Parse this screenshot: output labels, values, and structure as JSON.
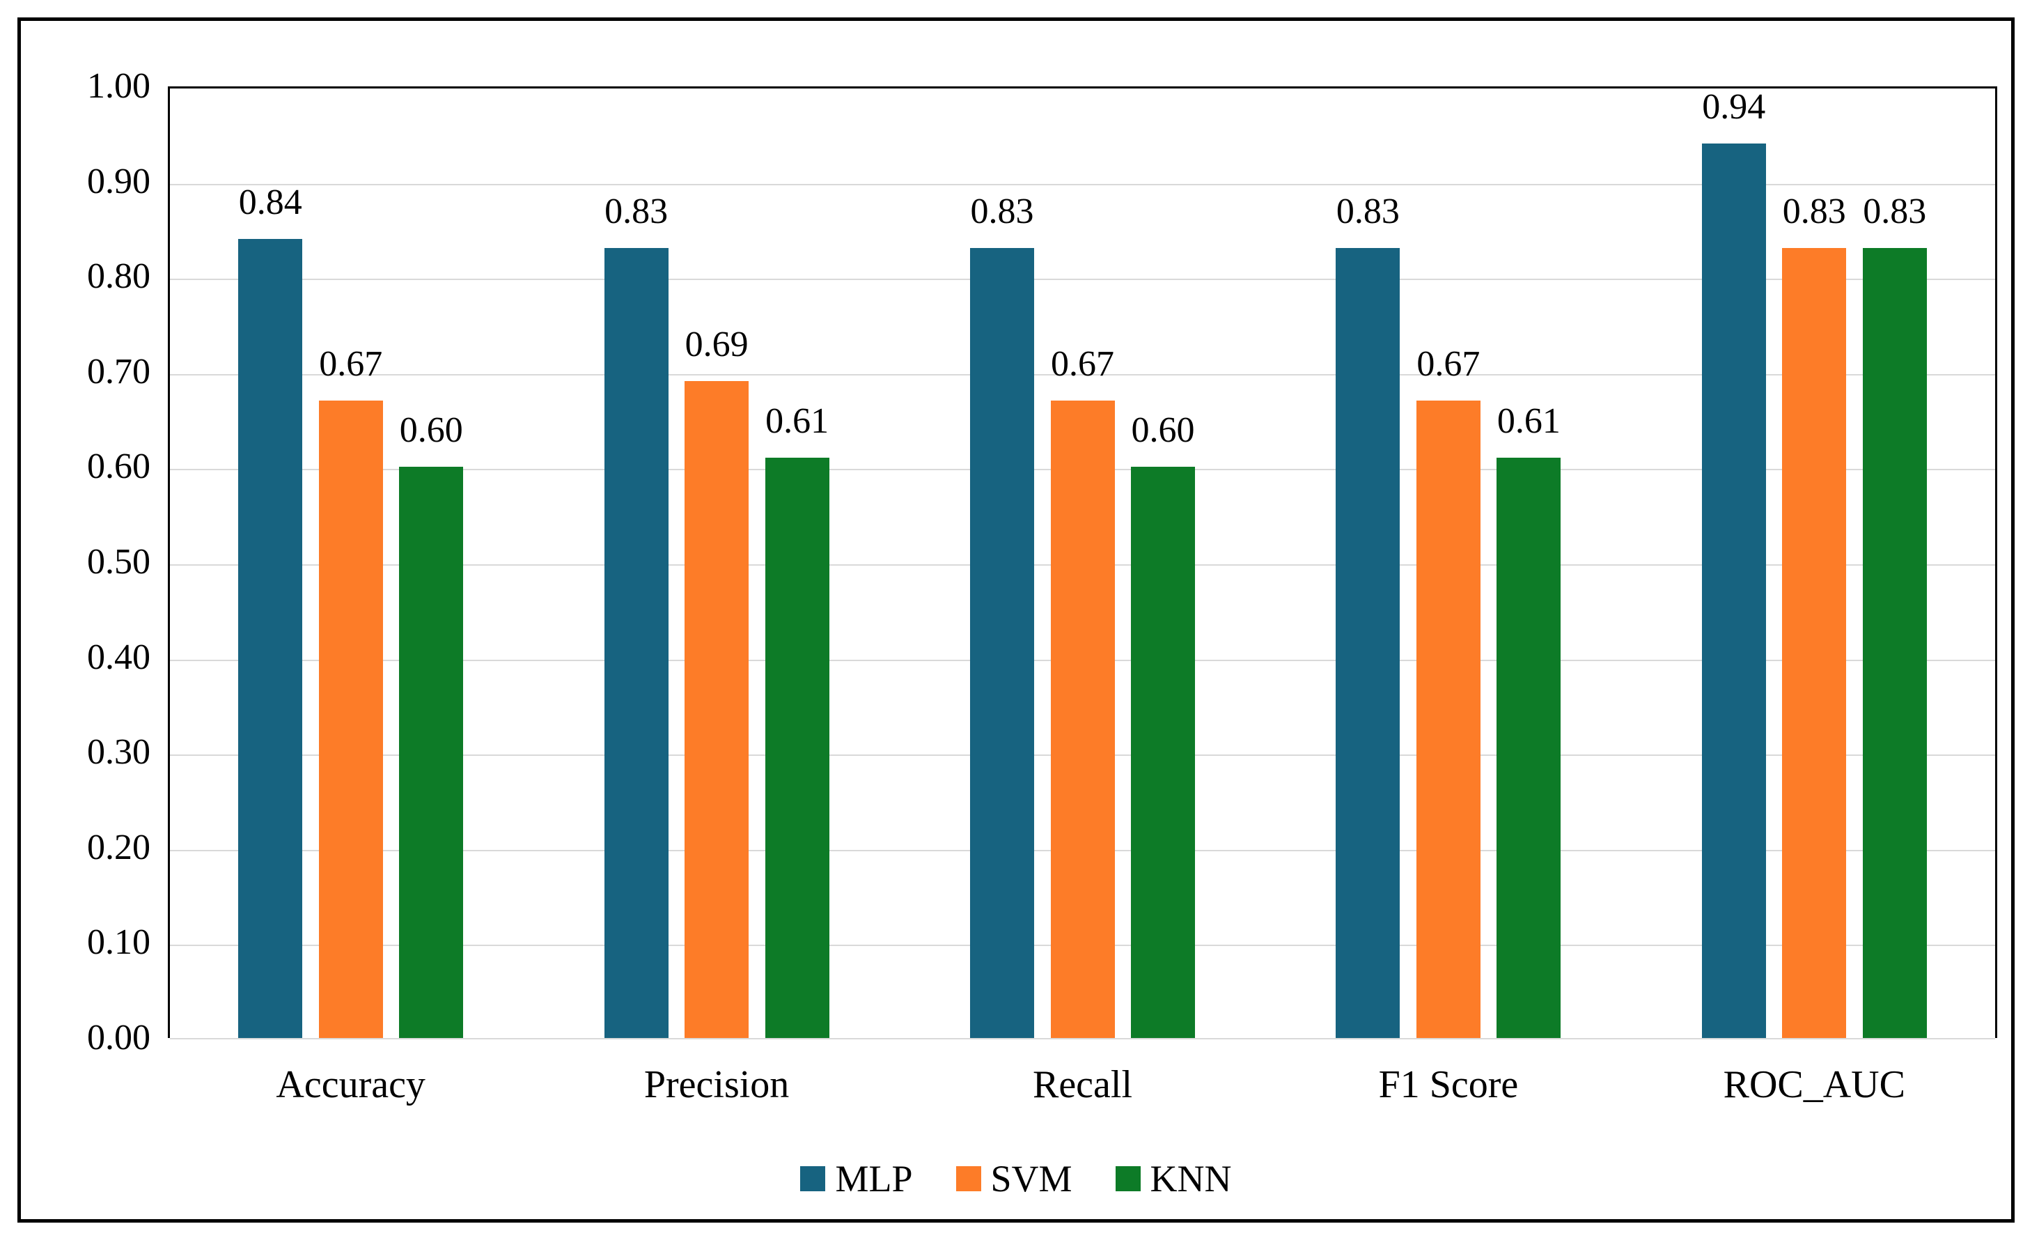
{
  "chart_data": {
    "type": "bar",
    "title": "",
    "xlabel": "",
    "ylabel": "",
    "categories": [
      "Accuracy",
      "Precision",
      "Recall",
      "F1 Score",
      "ROC_AUC"
    ],
    "series": [
      {
        "name": "MLP",
        "color": "#176380",
        "values": [
          0.84,
          0.83,
          0.83,
          0.83,
          0.94
        ]
      },
      {
        "name": "SVM",
        "color": "#FD7C28",
        "values": [
          0.67,
          0.69,
          0.67,
          0.67,
          0.83
        ]
      },
      {
        "name": "KNN",
        "color": "#0D7B27",
        "values": [
          0.6,
          0.61,
          0.6,
          0.61,
          0.83
        ]
      }
    ],
    "bar_value_labels": [
      [
        "0.84",
        "0.83",
        "0.83",
        "0.83",
        "0.94"
      ],
      [
        "0.67",
        "0.69",
        "0.67",
        "0.67",
        "0.83"
      ],
      [
        "0.60",
        "0.61",
        "0.60",
        "0.61",
        "0.83"
      ]
    ],
    "ylim": [
      0.0,
      1.0
    ],
    "ytick_step": 0.1,
    "yticks": [
      {
        "value": 1.0,
        "label": "1.00"
      },
      {
        "value": 0.9,
        "label": "0.90"
      },
      {
        "value": 0.8,
        "label": "0.80"
      },
      {
        "value": 0.7,
        "label": "0.70"
      },
      {
        "value": 0.6,
        "label": "0.60"
      },
      {
        "value": 0.5,
        "label": "0.50"
      },
      {
        "value": 0.4,
        "label": "0.40"
      },
      {
        "value": 0.3,
        "label": "0.30"
      },
      {
        "value": 0.2,
        "label": "0.20"
      },
      {
        "value": 0.1,
        "label": "0.10"
      },
      {
        "value": 0.0,
        "label": "0.00"
      }
    ],
    "grid": "horizontal",
    "gridline_color": "#D9D9D9",
    "baseline_color": "#D9D9D9",
    "plot_border_color": "#000000",
    "outer_border_color": "#000000",
    "legend_position": "bottom",
    "legend": [
      "MLP",
      "SVM",
      "KNN"
    ]
  }
}
